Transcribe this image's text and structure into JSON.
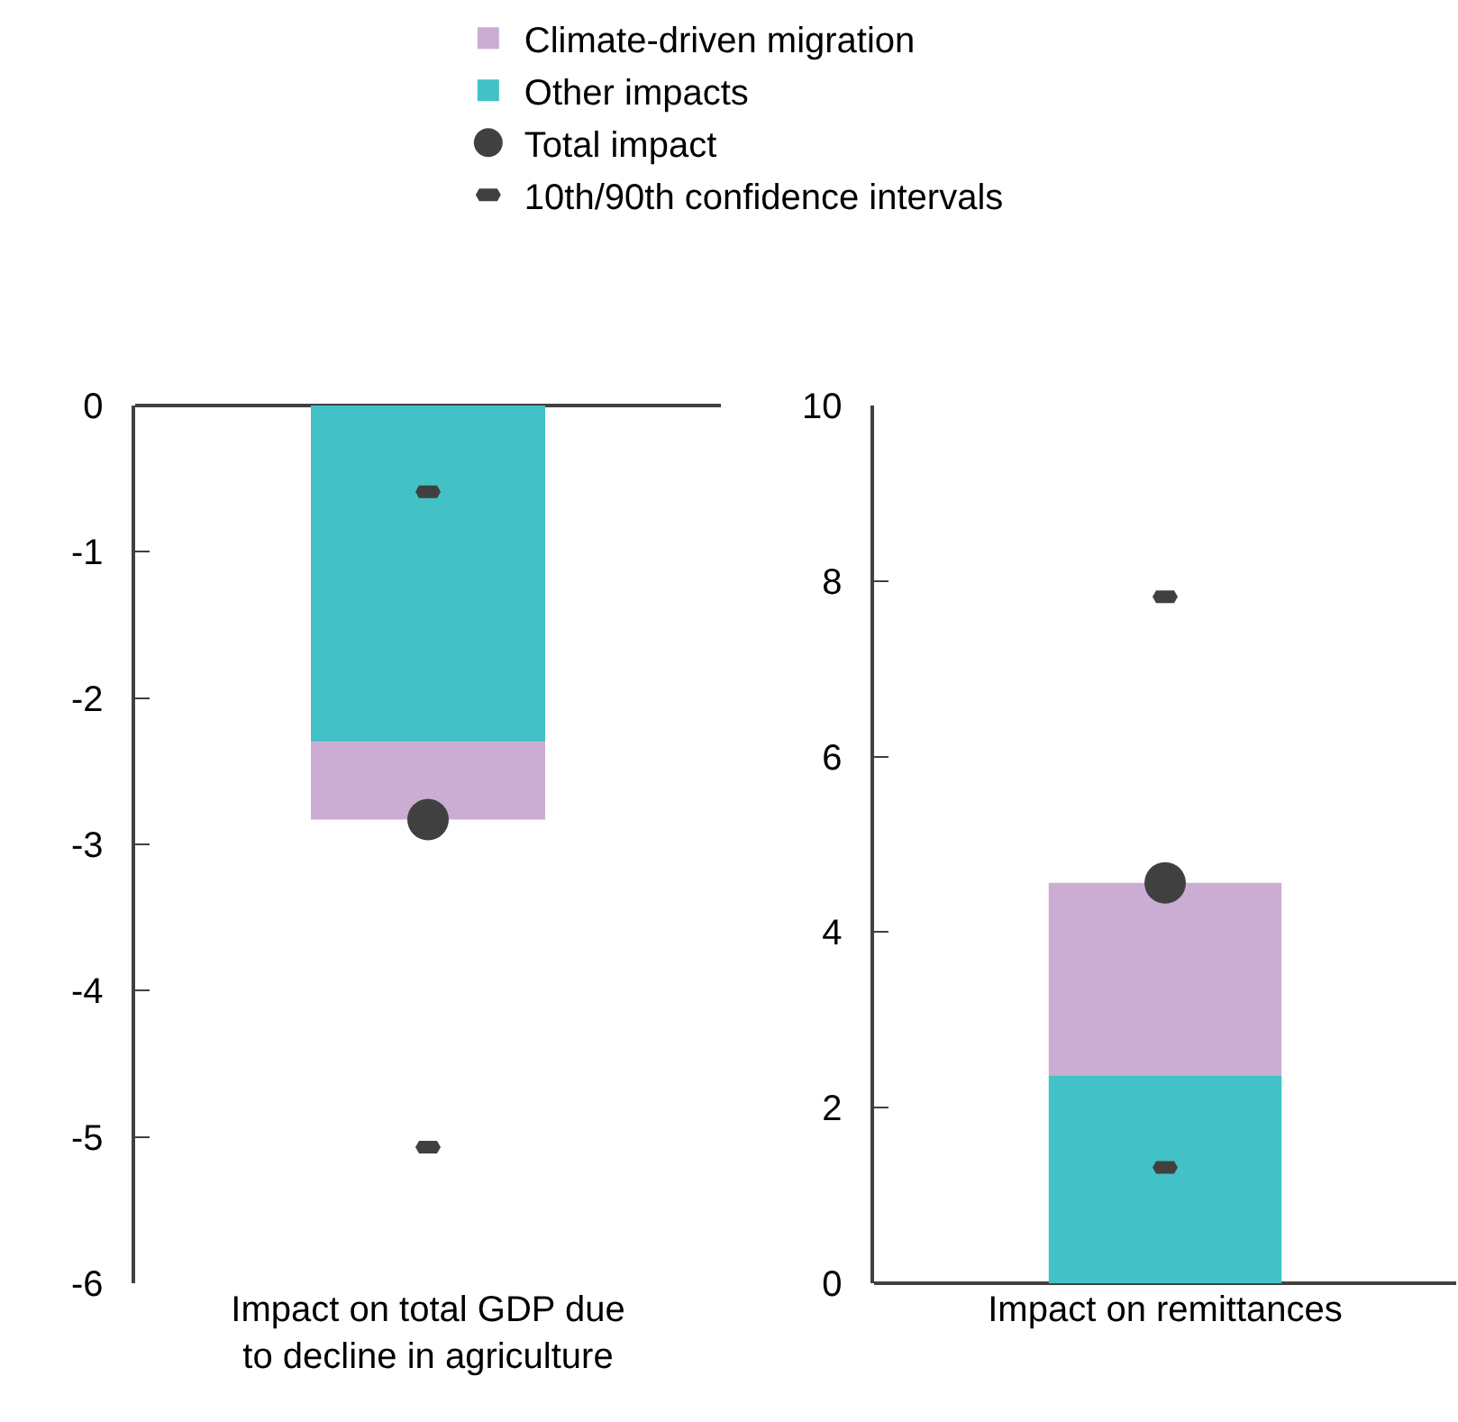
{
  "chart_data": [
    {
      "type": "bar",
      "stacked": true,
      "legend": "top",
      "categories": [
        "Impact on total GDP due to decline in agriculture"
      ],
      "ylim": [
        -6,
        0
      ],
      "yticks": [
        -6,
        -5,
        -4,
        -3,
        -2,
        -1,
        0
      ],
      "series": [
        {
          "name": "Other impacts",
          "color": "#42c1c6",
          "values": [
            -2.3
          ]
        },
        {
          "name": "Climate-driven migration",
          "color": "#cbadd3",
          "values": [
            -0.53
          ]
        },
        {
          "name": "Total impact",
          "type": "scatter",
          "marker": "circle",
          "color": "#404040",
          "values": [
            -2.83
          ]
        },
        {
          "name": "10th/90th confidence intervals",
          "type": "scatter",
          "color": "#404040",
          "x": [
            "Impact on total GDP due to decline in agriculture",
            "Impact on total GDP due to decline in agriculture"
          ],
          "values": [
            -0.59,
            -5.07
          ]
        }
      ]
    },
    {
      "type": "bar",
      "stacked": true,
      "categories": [
        "Impact on remittances"
      ],
      "ylim": [
        0,
        10
      ],
      "yticks": [
        0,
        2,
        4,
        6,
        8,
        10
      ],
      "series": [
        {
          "name": "Other impacts",
          "color": "#42c1c6",
          "values": [
            2.37
          ]
        },
        {
          "name": "Climate-driven migration",
          "color": "#cbadd3",
          "values": [
            2.19
          ]
        },
        {
          "name": "Total impact",
          "type": "scatter",
          "marker": "circle",
          "color": "#404040",
          "values": [
            4.56
          ]
        },
        {
          "name": "10th/90th confidence intervals",
          "type": "scatter",
          "color": "#404040",
          "x": [
            "Impact on remittances",
            "Impact on remittances"
          ],
          "values": [
            7.82,
            1.32
          ]
        }
      ]
    }
  ]
}
